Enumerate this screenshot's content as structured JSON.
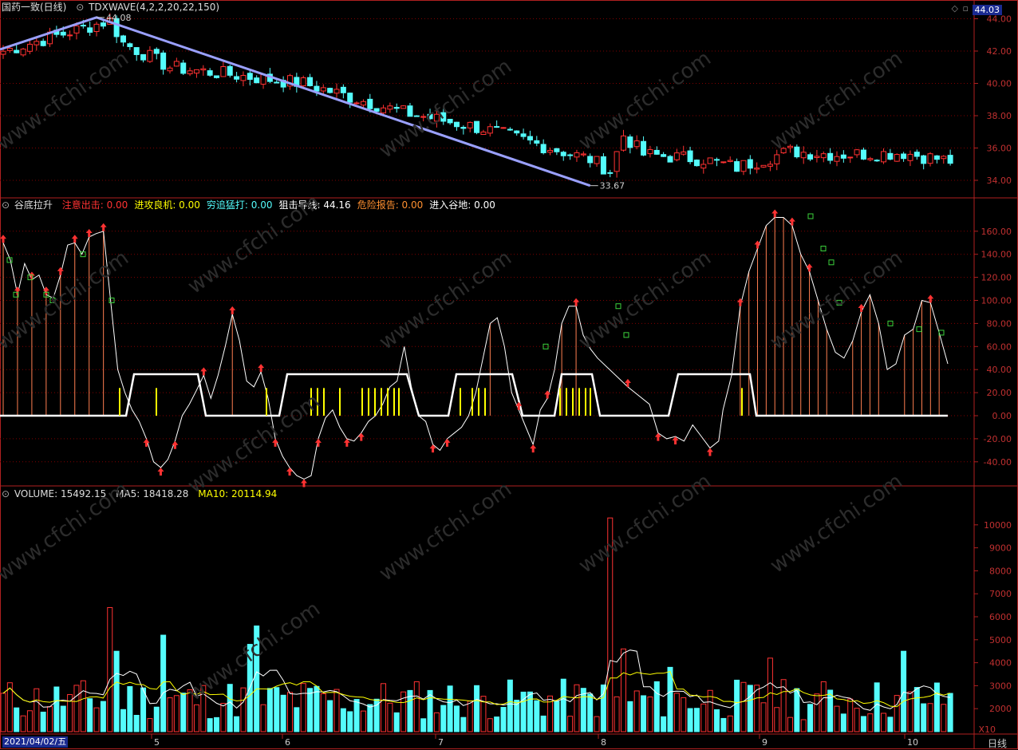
{
  "colors": {
    "up": "#ff3232",
    "down": "#54fcfc",
    "grid": "#800000",
    "border": "#b02020",
    "white": "#ffffff",
    "yellow": "#ffff00",
    "trend": "#9aa0ff"
  },
  "price_panel": {
    "title": "国药一致(日线)",
    "indicator": "TDXWAVE(4,2,2,20,22,150)",
    "current": "44.03",
    "high_label": "44.08",
    "low_label": "33.67",
    "ticks": [
      "44.00",
      "42.00",
      "40.00",
      "38.00",
      "36.00",
      "34.00"
    ]
  },
  "osc_panel": {
    "name": "谷底拉升",
    "items": [
      {
        "label": "注意出击:",
        "value": "0.00",
        "color": "#ff3232"
      },
      {
        "label": "进攻良机:",
        "value": "0.00",
        "color": "#ffff00"
      },
      {
        "label": "穷追猛打:",
        "value": "0.00",
        "color": "#54fcfc"
      },
      {
        "label": "狙击导线:",
        "value": "44.16",
        "color": "#ffffff"
      },
      {
        "label": "危险报告:",
        "value": "0.00",
        "color": "#ff9030"
      },
      {
        "label": "进入谷地:",
        "value": "0.00",
        "color": "#ffffff"
      }
    ],
    "ticks": [
      "160.00",
      "140.00",
      "120.00",
      "100.00",
      "80.00",
      "60.00",
      "40.00",
      "20.00",
      "0.00",
      "-20.00",
      "-40.00"
    ]
  },
  "volume_panel": {
    "name": "VOLUME:",
    "value": "15492.15",
    "ma5_label": "MA5:",
    "ma5": "18418.28",
    "ma10_label": "MA10:",
    "ma10": "20114.94",
    "ticks": [
      "10000",
      "9000",
      "8000",
      "7000",
      "6000",
      "5000",
      "4000",
      "3000",
      "2000"
    ],
    "unit": "X10"
  },
  "xaxis": {
    "start_date": "2021/04/02/五",
    "months": [
      "5",
      "6",
      "7",
      "8",
      "9",
      "10"
    ],
    "period": "日线"
  },
  "watermark": "www.cfchi.com"
}
